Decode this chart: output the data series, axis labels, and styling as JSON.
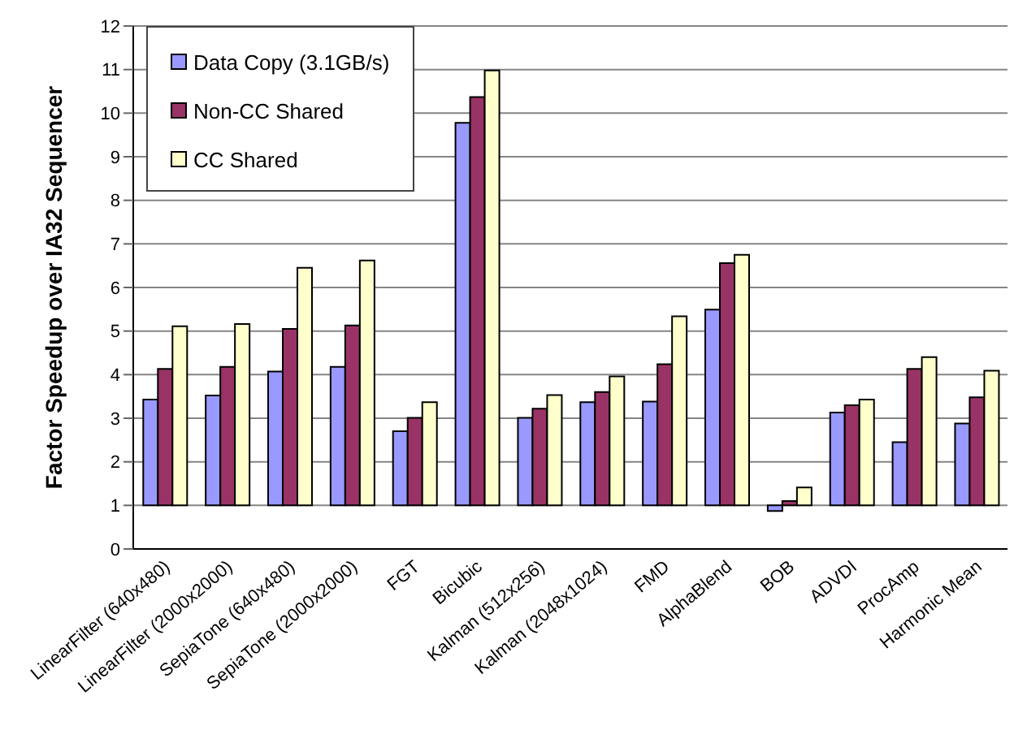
{
  "chart_data": {
    "type": "bar",
    "ylabel": "Factor Speedup over IA32 Sequencer",
    "categories": [
      "LinearFilter (640x480)",
      "LinearFilter (2000x2000)",
      "SepiaTone (640x480)",
      "SepiaTone (2000x2000)",
      "FGT",
      "Bicubic",
      "Kalman (512x256)",
      "Kalman (2048x1024)",
      "FMD",
      "AlphaBlend",
      "BOB",
      "ADVDI",
      "ProcAmp",
      "Harmonic Mean"
    ],
    "series": [
      {
        "name": "Data Copy (3.1GB/s)",
        "color": "#9999ff",
        "base": [
          1,
          1,
          1,
          1,
          1,
          1,
          1,
          1,
          1,
          1,
          1,
          1,
          1,
          1
        ],
        "values": [
          2.43,
          2.52,
          3.07,
          3.18,
          1.7,
          8.78,
          2.01,
          2.37,
          2.38,
          4.49,
          -0.13,
          2.13,
          1.45,
          1.88
        ]
      },
      {
        "name": "Non-CC Shared",
        "color": "#993366",
        "base": [
          1,
          1,
          1,
          1,
          1,
          1,
          1,
          1,
          1,
          1,
          1,
          1,
          1,
          1
        ],
        "values": [
          3.13,
          3.18,
          4.05,
          4.13,
          2.01,
          9.37,
          2.22,
          2.6,
          3.24,
          5.56,
          0.1,
          2.3,
          3.13,
          2.48
        ]
      },
      {
        "name": "CC Shared",
        "color": "#ffffcc",
        "base": [
          1,
          1,
          1,
          1,
          1,
          1,
          1,
          1,
          1,
          1,
          1,
          1,
          1,
          1
        ],
        "values": [
          4.11,
          4.16,
          5.45,
          5.62,
          2.37,
          9.98,
          2.53,
          2.96,
          4.34,
          5.75,
          0.41,
          2.43,
          3.4,
          3.09
        ]
      }
    ],
    "ylim": [
      0,
      12
    ],
    "yticks": [
      0,
      1,
      2,
      3,
      4,
      5,
      6,
      7,
      8,
      9,
      10,
      11,
      12
    ],
    "grid": "y",
    "legend": "top left"
  }
}
